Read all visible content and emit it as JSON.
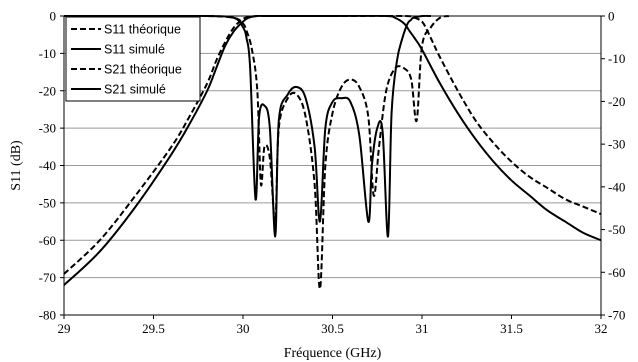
{
  "chart_data": {
    "type": "line",
    "title": "",
    "xlabel": "Fréquence (GHz)",
    "ylabel": "S11 (dB)",
    "xlim": [
      29,
      32
    ],
    "ylim": [
      -80,
      0
    ],
    "y2lim": [
      -70,
      0
    ],
    "xticks": [
      "29",
      "29.5",
      "30",
      "30.5",
      "31",
      "31.5",
      "32"
    ],
    "yticks": [
      "0",
      "-10",
      "-20",
      "-30",
      "-40",
      "-50",
      "-60",
      "-70",
      "-80"
    ],
    "y2ticks": [
      "0",
      "-10",
      "-20",
      "-30",
      "-40",
      "-50",
      "-60",
      "-70"
    ],
    "grid": "horizontal",
    "legend_position": "top-left",
    "series": [
      {
        "name": "S11 théorique",
        "style": "dashed",
        "color": "#000000",
        "x": [
          29.0,
          29.5,
          29.8,
          29.95,
          30.0,
          30.02,
          30.05,
          30.08,
          30.1,
          30.12,
          30.15,
          30.18,
          30.2,
          30.25,
          30.3,
          30.35,
          30.4,
          30.43,
          30.46,
          30.5,
          30.55,
          30.6,
          30.65,
          30.7,
          30.73,
          30.76,
          30.8,
          30.85,
          30.9,
          30.94,
          30.97,
          31.0,
          31.05,
          31.1,
          31.15
        ],
        "y": [
          0,
          0,
          0,
          -0.5,
          -2,
          -4,
          -9,
          -20,
          -45,
          -35,
          -38,
          -55,
          -30,
          -22,
          -21,
          -27,
          -45,
          -73,
          -40,
          -26,
          -19,
          -17,
          -19,
          -27,
          -48,
          -35,
          -20,
          -14,
          -14,
          -17,
          -28,
          -8,
          -3,
          -0.5,
          0
        ]
      },
      {
        "name": "S11 simulé",
        "style": "solid",
        "color": "#000000",
        "x": [
          29.0,
          29.5,
          29.8,
          29.95,
          30.0,
          30.02,
          30.04,
          30.07,
          30.09,
          30.12,
          30.15,
          30.18,
          30.2,
          30.25,
          30.3,
          30.35,
          30.4,
          30.43,
          30.46,
          30.5,
          30.55,
          30.6,
          30.65,
          30.7,
          30.72,
          30.75,
          30.78,
          30.81,
          30.83,
          30.86,
          30.89,
          30.92,
          30.94,
          30.95,
          31.0,
          31.05
        ],
        "y": [
          0,
          0,
          0,
          -0.5,
          -3,
          -6,
          -14,
          -49,
          -27,
          -24,
          -30,
          -59,
          -28,
          -21,
          -19,
          -22,
          -35,
          -55,
          -30,
          -23,
          -22,
          -23,
          -32,
          -55,
          -40,
          -30,
          -31,
          -59,
          -26,
          -12,
          -6,
          -2,
          -1,
          -0.5,
          0,
          0
        ]
      },
      {
        "name": "S21 théorique",
        "style": "dashed",
        "color": "#000000",
        "x": [
          29.0,
          29.2,
          29.4,
          29.6,
          29.7,
          29.8,
          29.85,
          29.9,
          29.95,
          30.0,
          30.03,
          30.08,
          30.15,
          30.5,
          30.9,
          30.95,
          31.0,
          31.03,
          31.06,
          31.1,
          31.2,
          31.3,
          31.4,
          31.5,
          31.6,
          31.7,
          31.8,
          31.9,
          32.0
        ],
        "y": [
          -69,
          -60,
          -48,
          -35,
          -27,
          -18,
          -12,
          -7,
          -3,
          -0.8,
          -0.3,
          0,
          0,
          0,
          0,
          -0.3,
          -1.5,
          -4,
          -7,
          -11,
          -20,
          -28,
          -34,
          -39,
          -43,
          -46,
          -49,
          -51,
          -53
        ]
      },
      {
        "name": "S21 simulé",
        "style": "solid",
        "color": "#000000",
        "x": [
          29.0,
          29.2,
          29.4,
          29.6,
          29.7,
          29.8,
          29.85,
          29.9,
          29.95,
          30.0,
          30.03,
          30.08,
          30.15,
          30.5,
          30.8,
          30.85,
          30.9,
          30.93,
          30.96,
          31.0,
          31.1,
          31.2,
          31.3,
          31.4,
          31.5,
          31.6,
          31.7,
          31.8,
          31.9,
          32.0
        ],
        "y": [
          -72,
          -63,
          -51,
          -37,
          -29,
          -20,
          -14,
          -8,
          -4,
          -1.5,
          -0.5,
          0,
          0,
          0,
          0,
          -0.5,
          -2,
          -4,
          -6,
          -9,
          -18,
          -26,
          -33,
          -39,
          -44,
          -48,
          -52,
          -55,
          -58,
          -60
        ]
      }
    ]
  }
}
